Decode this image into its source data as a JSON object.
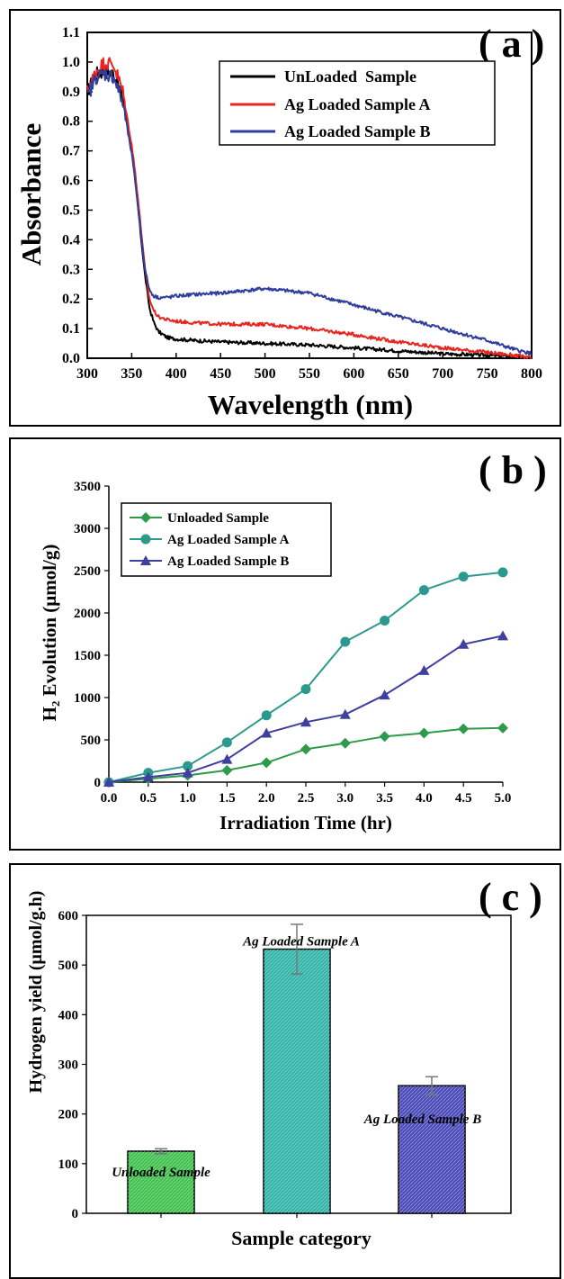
{
  "chart_data": [
    {
      "panel": "( a )",
      "type": "line",
      "xlabel": "Wavelength (nm)",
      "ylabel": "Absorbance",
      "xlim": [
        300,
        800
      ],
      "ylim": [
        0.0,
        1.1
      ],
      "xticks": [
        300,
        350,
        400,
        450,
        500,
        550,
        600,
        650,
        700,
        750,
        800
      ],
      "yticks": [
        0.0,
        0.1,
        0.2,
        0.3,
        0.4,
        0.5,
        0.6,
        0.7,
        0.8,
        0.9,
        1.0,
        1.1
      ],
      "legend_position": "top-right",
      "series": [
        {
          "name": "UnLoaded  Sample",
          "color": "#000000",
          "x": [
            300,
            310,
            320,
            330,
            340,
            350,
            355,
            360,
            365,
            370,
            375,
            380,
            390,
            400,
            420,
            450,
            500,
            550,
            600,
            650,
            700,
            750,
            780,
            800
          ],
          "y": [
            0.9,
            0.96,
            0.97,
            0.96,
            0.88,
            0.7,
            0.58,
            0.42,
            0.28,
            0.17,
            0.12,
            0.09,
            0.07,
            0.065,
            0.06,
            0.055,
            0.05,
            0.045,
            0.035,
            0.025,
            0.015,
            0.01,
            0.005,
            0.0
          ]
        },
        {
          "name": "Ag Loaded Sample A",
          "color": "#e8251f",
          "x": [
            300,
            310,
            320,
            330,
            340,
            350,
            355,
            360,
            365,
            370,
            375,
            380,
            390,
            400,
            420,
            450,
            500,
            550,
            600,
            650,
            700,
            750,
            780,
            800
          ],
          "y": [
            0.9,
            0.97,
            1.0,
            0.99,
            0.9,
            0.72,
            0.6,
            0.45,
            0.3,
            0.2,
            0.16,
            0.14,
            0.13,
            0.125,
            0.12,
            0.115,
            0.115,
            0.1,
            0.08,
            0.055,
            0.035,
            0.02,
            0.01,
            0.0
          ]
        },
        {
          "name": "Ag Loaded Sample B",
          "color": "#2f3d9c",
          "x": [
            300,
            310,
            320,
            330,
            340,
            350,
            355,
            360,
            365,
            370,
            375,
            380,
            390,
            400,
            420,
            450,
            500,
            550,
            600,
            650,
            700,
            750,
            780,
            800
          ],
          "y": [
            0.88,
            0.95,
            0.96,
            0.95,
            0.86,
            0.69,
            0.57,
            0.43,
            0.3,
            0.23,
            0.21,
            0.205,
            0.205,
            0.21,
            0.215,
            0.22,
            0.235,
            0.22,
            0.18,
            0.14,
            0.1,
            0.06,
            0.03,
            0.015
          ]
        }
      ]
    },
    {
      "panel": "( b )",
      "type": "line",
      "xlabel": "Irradiation Time (hr)",
      "ylabel": "H₂ Evolution (μmol/g)",
      "xlim": [
        0.0,
        5.0
      ],
      "ylim": [
        0,
        3500
      ],
      "xticks": [
        "0.0",
        "0.5",
        "1.0",
        "1.5",
        "2.0",
        "2.5",
        "3.0",
        "3.5",
        "4.0",
        "4.5",
        "5.0"
      ],
      "yticks": [
        0,
        500,
        1000,
        1500,
        2000,
        2500,
        3000,
        3500
      ],
      "legend_position": "top-left",
      "x": [
        0.0,
        0.5,
        1.0,
        1.5,
        2.0,
        2.5,
        3.0,
        3.5,
        4.0,
        4.5,
        5.0
      ],
      "series": [
        {
          "name": "Unloaded Sample",
          "color": "#2e9a4a",
          "marker": "diamond",
          "values": [
            0,
            40,
            80,
            140,
            230,
            390,
            460,
            540,
            580,
            630,
            640
          ]
        },
        {
          "name": "Ag Loaded Sample A",
          "color": "#2b9a8c",
          "marker": "circle",
          "values": [
            0,
            110,
            190,
            470,
            790,
            1100,
            1660,
            1910,
            2270,
            2430,
            2480
          ]
        },
        {
          "name": "Ag Loaded Sample B",
          "color": "#3f3f9e",
          "marker": "triangle",
          "values": [
            0,
            60,
            110,
            270,
            580,
            710,
            800,
            1030,
            1320,
            1630,
            1730
          ]
        }
      ]
    },
    {
      "panel": "( c )",
      "type": "bar",
      "xlabel": "Sample category",
      "ylabel": "Hydrogen yield (μmol/g.h)",
      "ylim": [
        0,
        600
      ],
      "yticks": [
        0,
        100,
        200,
        300,
        400,
        500,
        600
      ],
      "categories": [
        "Unloaded Sample",
        "Ag Loaded Sample A",
        "Ag Loaded Sample B"
      ],
      "values": [
        125,
        532,
        257
      ],
      "errors": [
        5,
        50,
        18
      ],
      "colors": [
        "#3fbf4c",
        "#2fb3a8",
        "#4a4ab8"
      ]
    }
  ]
}
